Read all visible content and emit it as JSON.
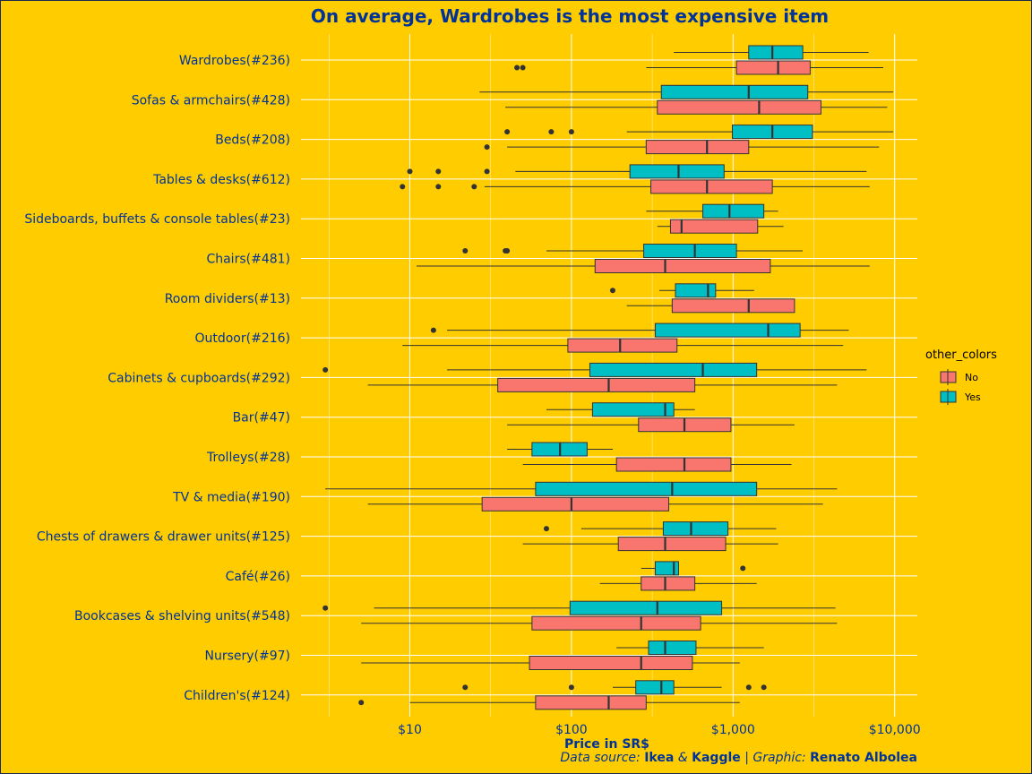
{
  "chart_data": {
    "type": "boxplot",
    "title": "On average, Wardrobes is the most expensive item",
    "xlabel": "Price in SR$",
    "xscale": "log10",
    "xlim": [
      2.7,
      14000
    ],
    "x_ticks": [
      10,
      100,
      1000,
      10000
    ],
    "x_tick_labels": [
      "$10",
      "$100",
      "$1,000",
      "$10,000"
    ],
    "legend": {
      "title": "other_colors",
      "position": "right",
      "entries": [
        {
          "name": "No",
          "color": "#F8766D"
        },
        {
          "name": "Yes",
          "color": "#00BFC4"
        }
      ]
    },
    "categories": [
      {
        "label": "Wardrobes(#236)",
        "no": {
          "whisker_low": 290,
          "q1": 1050,
          "median": 1900,
          "q3": 3000,
          "whisker_high": 8500,
          "outliers": [
            46,
            50
          ]
        },
        "yes": {
          "whisker_low": 430,
          "q1": 1250,
          "median": 1750,
          "q3": 2700,
          "whisker_high": 6900,
          "outliers": []
        }
      },
      {
        "label": "Sofas & armchairs(#428)",
        "no": {
          "whisker_low": 39,
          "q1": 340,
          "median": 1450,
          "q3": 3500,
          "whisker_high": 9000,
          "outliers": []
        },
        "yes": {
          "whisker_low": 27,
          "q1": 360,
          "median": 1250,
          "q3": 2900,
          "whisker_high": 9800,
          "outliers": []
        }
      },
      {
        "label": "Beds(#208)",
        "no": {
          "whisker_low": 40,
          "q1": 290,
          "median": 690,
          "q3": 1250,
          "whisker_high": 8000,
          "outliers": [
            30
          ]
        },
        "yes": {
          "whisker_low": 220,
          "q1": 990,
          "median": 1750,
          "q3": 3100,
          "whisker_high": 9800,
          "outliers": [
            40,
            75,
            100
          ]
        }
      },
      {
        "label": "Tables & desks(#612)",
        "no": {
          "whisker_low": 29,
          "q1": 310,
          "median": 690,
          "q3": 1750,
          "whisker_high": 7000,
          "outliers": [
            9,
            15,
            25
          ]
        },
        "yes": {
          "whisker_low": 45,
          "q1": 230,
          "median": 460,
          "q3": 880,
          "whisker_high": 6700,
          "outliers": [
            10,
            15,
            30
          ]
        }
      },
      {
        "label": "Sideboards, buffets & console tables(#23)",
        "no": {
          "whisker_low": 340,
          "q1": 410,
          "median": 480,
          "q3": 1420,
          "whisker_high": 2050,
          "outliers": []
        },
        "yes": {
          "whisker_low": 290,
          "q1": 650,
          "median": 950,
          "q3": 1550,
          "whisker_high": 1900,
          "outliers": []
        }
      },
      {
        "label": "Chairs(#481)",
        "no": {
          "whisker_low": 11,
          "q1": 140,
          "median": 380,
          "q3": 1700,
          "whisker_high": 7000,
          "outliers": []
        },
        "yes": {
          "whisker_low": 70,
          "q1": 280,
          "median": 580,
          "q3": 1050,
          "whisker_high": 2700,
          "outliers": [
            22,
            39,
            40
          ]
        }
      },
      {
        "label": "Room dividers(#13)",
        "no": {
          "whisker_low": 220,
          "q1": 420,
          "median": 1250,
          "q3": 2400,
          "whisker_high": 2400,
          "outliers": []
        },
        "yes": {
          "whisker_low": 350,
          "q1": 440,
          "median": 700,
          "q3": 780,
          "whisker_high": 1350,
          "outliers": [
            180
          ]
        }
      },
      {
        "label": "Outdoor(#216)",
        "no": {
          "whisker_low": 9,
          "q1": 95,
          "median": 200,
          "q3": 450,
          "whisker_high": 4800,
          "outliers": []
        },
        "yes": {
          "whisker_low": 17,
          "q1": 330,
          "median": 1650,
          "q3": 2600,
          "whisker_high": 5200,
          "outliers": [
            14
          ]
        }
      },
      {
        "label": "Cabinets & cupboards(#292)",
        "no": {
          "whisker_low": 5.5,
          "q1": 35,
          "median": 170,
          "q3": 580,
          "whisker_high": 4400,
          "outliers": []
        },
        "yes": {
          "whisker_low": 17,
          "q1": 130,
          "median": 650,
          "q3": 1400,
          "whisker_high": 6700,
          "outliers": [
            3
          ]
        }
      },
      {
        "label": "Bar(#47)",
        "no": {
          "whisker_low": 40,
          "q1": 260,
          "median": 500,
          "q3": 970,
          "whisker_high": 2400,
          "outliers": []
        },
        "yes": {
          "whisker_low": 70,
          "q1": 135,
          "median": 380,
          "q3": 430,
          "whisker_high": 580,
          "outliers": []
        }
      },
      {
        "label": "Trolleys(#28)",
        "no": {
          "whisker_low": 50,
          "q1": 190,
          "median": 500,
          "q3": 970,
          "whisker_high": 2300,
          "outliers": []
        },
        "yes": {
          "whisker_low": 40,
          "q1": 57,
          "median": 85,
          "q3": 125,
          "whisker_high": 180,
          "outliers": []
        }
      },
      {
        "label": "TV & media(#190)",
        "no": {
          "whisker_low": 5.5,
          "q1": 28,
          "median": 100,
          "q3": 400,
          "whisker_high": 3600,
          "outliers": []
        },
        "yes": {
          "whisker_low": 3,
          "q1": 60,
          "median": 420,
          "q3": 1400,
          "whisker_high": 4400,
          "outliers": []
        }
      },
      {
        "label": "Chests of drawers & drawer units(#125)",
        "no": {
          "whisker_low": 50,
          "q1": 195,
          "median": 380,
          "q3": 900,
          "whisker_high": 1900,
          "outliers": []
        },
        "yes": {
          "whisker_low": 115,
          "q1": 370,
          "median": 550,
          "q3": 930,
          "whisker_high": 1850,
          "outliers": [
            70
          ]
        }
      },
      {
        "label": "Café(#26)",
        "no": {
          "whisker_low": 150,
          "q1": 270,
          "median": 380,
          "q3": 580,
          "whisker_high": 1400,
          "outliers": []
        },
        "yes": {
          "whisker_low": 270,
          "q1": 330,
          "median": 430,
          "q3": 460,
          "whisker_high": 460,
          "outliers": [
            1150
          ]
        }
      },
      {
        "label": "Bookcases & shelving units(#548)",
        "no": {
          "whisker_low": 5,
          "q1": 57,
          "median": 270,
          "q3": 630,
          "whisker_high": 4400,
          "outliers": []
        },
        "yes": {
          "whisker_low": 6,
          "q1": 98,
          "median": 340,
          "q3": 850,
          "whisker_high": 4300,
          "outliers": [
            3
          ]
        }
      },
      {
        "label": "Nursery(#97)",
        "no": {
          "whisker_low": 5,
          "q1": 55,
          "median": 270,
          "q3": 560,
          "whisker_high": 1100,
          "outliers": []
        },
        "yes": {
          "whisker_low": 190,
          "q1": 300,
          "median": 380,
          "q3": 590,
          "whisker_high": 1550,
          "outliers": []
        }
      },
      {
        "label": "Children's(#124)",
        "no": {
          "whisker_low": 10,
          "q1": 60,
          "median": 170,
          "q3": 290,
          "whisker_high": 1100,
          "outliers": [
            5
          ]
        },
        "yes": {
          "whisker_low": 180,
          "q1": 250,
          "median": 360,
          "q3": 430,
          "whisker_high": 850,
          "outliers": [
            22,
            100,
            1250,
            1550
          ]
        }
      }
    ]
  },
  "caption": {
    "prefix": "Data source:",
    "src1": "Ikea",
    "amp": "&",
    "src2": "Kaggle",
    "sep": "|",
    "graphic_label": "Graphic:",
    "author": "Renato Albolea"
  },
  "colors": {
    "background": "#FFCC00",
    "text": "#003399",
    "grid": "#FFFFFF"
  }
}
